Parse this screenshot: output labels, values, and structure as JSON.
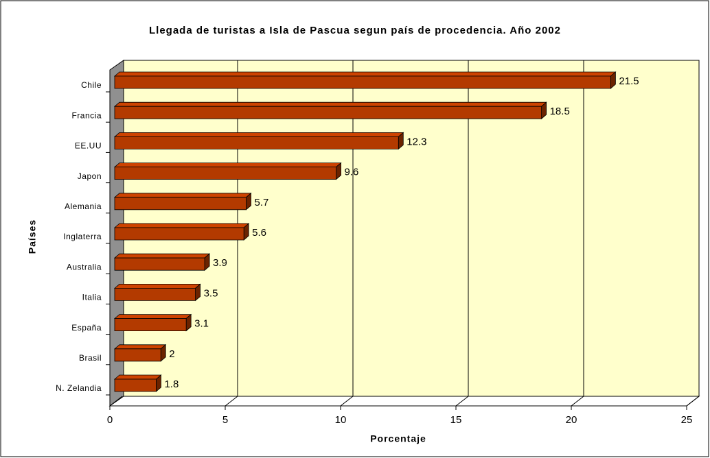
{
  "chart_data": {
    "type": "bar",
    "orientation": "horizontal",
    "title": "Llegada de turistas a Isla de Pascua segun país de procedencia. Año 2002",
    "x_label": "Porcentaje",
    "y_label": "Países",
    "categories": [
      "Chile",
      "Francia",
      "EE.UU",
      "Japon",
      "Alemania",
      "Inglaterra",
      "Australia",
      "Italia",
      "España",
      "Brasil",
      "N. Zelandia"
    ],
    "values": [
      21.5,
      18.5,
      12.3,
      9.6,
      5.7,
      5.6,
      3.9,
      3.5,
      3.1,
      2,
      1.8
    ],
    "color": "#b33a00",
    "xlim": [
      0,
      25
    ],
    "xticks": [
      0,
      5,
      10,
      15,
      20,
      25
    ],
    "grid": true
  }
}
